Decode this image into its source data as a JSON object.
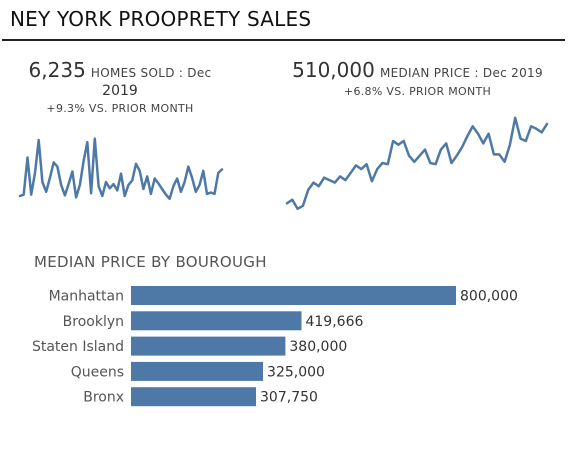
{
  "dashboard": {
    "title": "NEY YORK PROOPRETY SALES"
  },
  "kpi_homes": {
    "value": "6,235",
    "label": "HOMES SOLD : Dec",
    "label2": "2019",
    "change": "+9.3% VS. PRIOR MONTH"
  },
  "kpi_price": {
    "value": "510,000",
    "label": "MEDIAN PRICE : Dec 2019",
    "change": "+6.8% VS. PRIOR MONTH"
  },
  "colors": {
    "series": "#4e79a7",
    "bar": "#4e79a7"
  },
  "chart_data": [
    {
      "type": "line",
      "values": [
        180,
        182,
        235,
        182,
        213,
        260,
        200,
        186,
        206,
        228,
        222,
        196,
        181,
        197,
        215,
        178,
        196,
        230,
        257,
        184,
        262,
        194,
        180,
        200,
        191,
        197,
        188,
        212,
        180,
        196,
        202,
        226,
        216,
        190,
        208,
        183,
        205,
        198,
        190,
        182,
        176,
        194,
        205,
        186,
        200,
        222,
        206,
        186,
        196,
        216,
        183,
        185,
        183,
        213,
        218
      ],
      "ylim": [
        150,
        270
      ]
    },
    {
      "type": "line",
      "values": [
        434,
        440,
        425,
        430,
        456,
        468,
        462,
        476,
        472,
        468,
        478,
        472,
        484,
        496,
        490,
        498,
        470,
        490,
        500,
        498,
        536,
        530,
        536,
        512,
        502,
        512,
        522,
        500,
        498,
        522,
        532,
        500,
        512,
        526,
        544,
        560,
        548,
        532,
        548,
        514,
        514,
        502,
        530,
        574,
        540,
        536,
        560,
        556,
        550,
        564
      ],
      "ylim": [
        410,
        590
      ]
    },
    {
      "type": "bar",
      "title": "MEDIAN PRICE BY BOUROUGH",
      "categories": [
        "Manhattan",
        "Brooklyn",
        "Staten Island",
        "Queens",
        "Bronx"
      ],
      "values": [
        800000,
        419666,
        380000,
        325000,
        307750
      ],
      "labels": [
        "800,000",
        "419,666",
        "380,000",
        "325,000",
        "307,750"
      ],
      "xlim": [
        0,
        800000
      ]
    }
  ]
}
